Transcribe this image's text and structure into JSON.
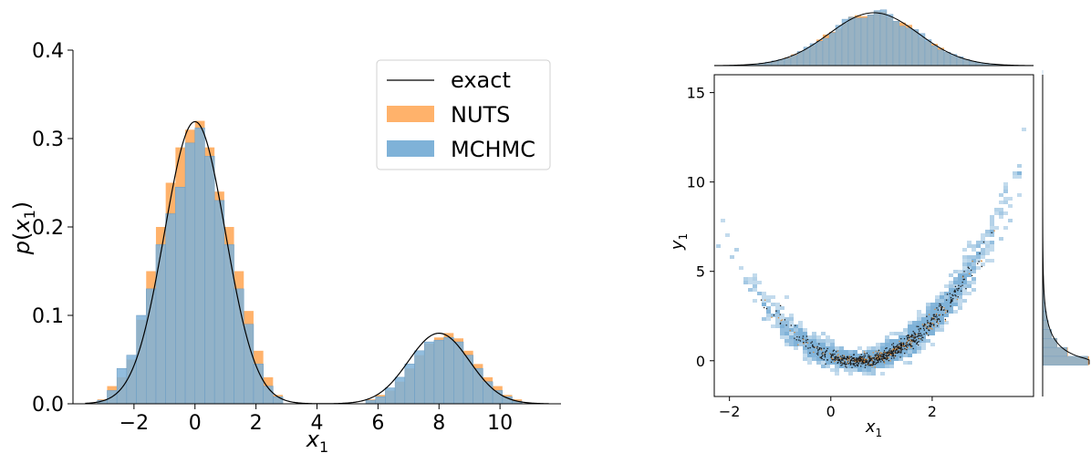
{
  "colors": {
    "nuts": "#ffb26b",
    "mchmc": "#7fb2d8",
    "exact": "#000000",
    "scatter_dots": "#1a1a1a",
    "scatter_orange": "#d88a3a"
  },
  "chart_data": [
    {
      "type": "bar",
      "subtype": "histogram-overlay",
      "xlabel": "x_1",
      "ylabel": "p(x_1)",
      "xlim": [
        -4,
        12
      ],
      "ylim": [
        0,
        0.4
      ],
      "xticks": [
        "−2",
        "0",
        "2",
        "4",
        "6",
        "8",
        "10"
      ],
      "xtick_values": [
        -2,
        0,
        2,
        4,
        6,
        8,
        10
      ],
      "yticks": [
        "0.0",
        "0.1",
        "0.2",
        "0.3",
        "0.4"
      ],
      "ytick_values": [
        0,
        0.1,
        0.2,
        0.3,
        0.4
      ],
      "legend": {
        "position": "top-right",
        "entries": [
          "exact",
          "NUTS",
          "MCHMC"
        ]
      },
      "bin_width": 0.32,
      "bin_edges_start": -3.2,
      "series": [
        {
          "name": "NUTS",
          "kind": "histogram",
          "bins_left": [
            -3.2,
            -2.88,
            -2.56,
            -2.24,
            -1.92,
            -1.6,
            -1.28,
            -0.96,
            -0.64,
            -0.32,
            0,
            0.32,
            0.64,
            0.96,
            1.28,
            1.6,
            1.92,
            2.24,
            2.56
          ],
          "values": [
            0.005,
            0.02,
            0.03,
            0.05,
            0.095,
            0.15,
            0.2,
            0.25,
            0.29,
            0.31,
            0.32,
            0.29,
            0.24,
            0.2,
            0.15,
            0.105,
            0.06,
            0.03,
            0.01
          ]
        },
        {
          "name": "NUTS",
          "kind": "histogram",
          "bins_left": [
            5.6,
            5.92,
            6.24,
            6.56,
            6.88,
            7.2,
            7.52,
            7.84,
            8.16,
            8.48,
            8.8,
            9.12,
            9.44,
            9.76,
            10.08,
            10.4
          ],
          "values": [
            0.005,
            0.01,
            0.015,
            0.025,
            0.04,
            0.055,
            0.068,
            0.075,
            0.08,
            0.074,
            0.06,
            0.045,
            0.03,
            0.02,
            0.01,
            0.005
          ]
        },
        {
          "name": "MCHMC",
          "kind": "histogram",
          "bins_left": [
            -3.2,
            -2.88,
            -2.56,
            -2.24,
            -1.92,
            -1.6,
            -1.28,
            -0.96,
            -0.64,
            -0.32,
            0,
            0.32,
            0.64,
            0.96,
            1.28,
            1.6,
            1.92,
            2.24,
            2.56
          ],
          "values": [
            0.004,
            0.015,
            0.04,
            0.055,
            0.1,
            0.13,
            0.18,
            0.215,
            0.245,
            0.295,
            0.312,
            0.28,
            0.23,
            0.18,
            0.13,
            0.09,
            0.045,
            0.02,
            0.008
          ]
        },
        {
          "name": "MCHMC",
          "kind": "histogram",
          "bins_left": [
            5.6,
            5.92,
            6.24,
            6.56,
            6.88,
            7.2,
            7.52,
            7.84,
            8.16,
            8.48,
            8.8,
            9.12,
            9.44,
            9.76,
            10.08,
            10.4
          ],
          "values": [
            0.004,
            0.008,
            0.018,
            0.03,
            0.045,
            0.06,
            0.07,
            0.072,
            0.075,
            0.07,
            0.055,
            0.04,
            0.025,
            0.015,
            0.008,
            0.003
          ]
        },
        {
          "name": "exact",
          "kind": "line",
          "mixture": [
            {
              "weight": 0.8,
              "mean": 0,
              "sd": 1
            },
            {
              "weight": 0.2,
              "mean": 8,
              "sd": 1
            }
          ]
        }
      ]
    },
    {
      "type": "heatmap",
      "subtype": "2d-histogram-with-samples-and-marginals",
      "xlabel": "x_1",
      "ylabel": "y_1",
      "xlim": [
        -2.3,
        4.0
      ],
      "ylim": [
        -2,
        16
      ],
      "xticks": [
        "−2",
        "0",
        "2"
      ],
      "xtick_values": [
        -2,
        0,
        2
      ],
      "yticks": [
        "0",
        "5",
        "10",
        "15"
      ],
      "ytick_values": [
        0,
        5,
        10,
        15
      ],
      "density_curve": {
        "relation": "y = x^2",
        "x_range": [
          -2.3,
          3.9
        ]
      },
      "marginal_x_range": [
        -4,
        6
      ],
      "marginal_y_range": [
        -2,
        16
      ]
    }
  ]
}
